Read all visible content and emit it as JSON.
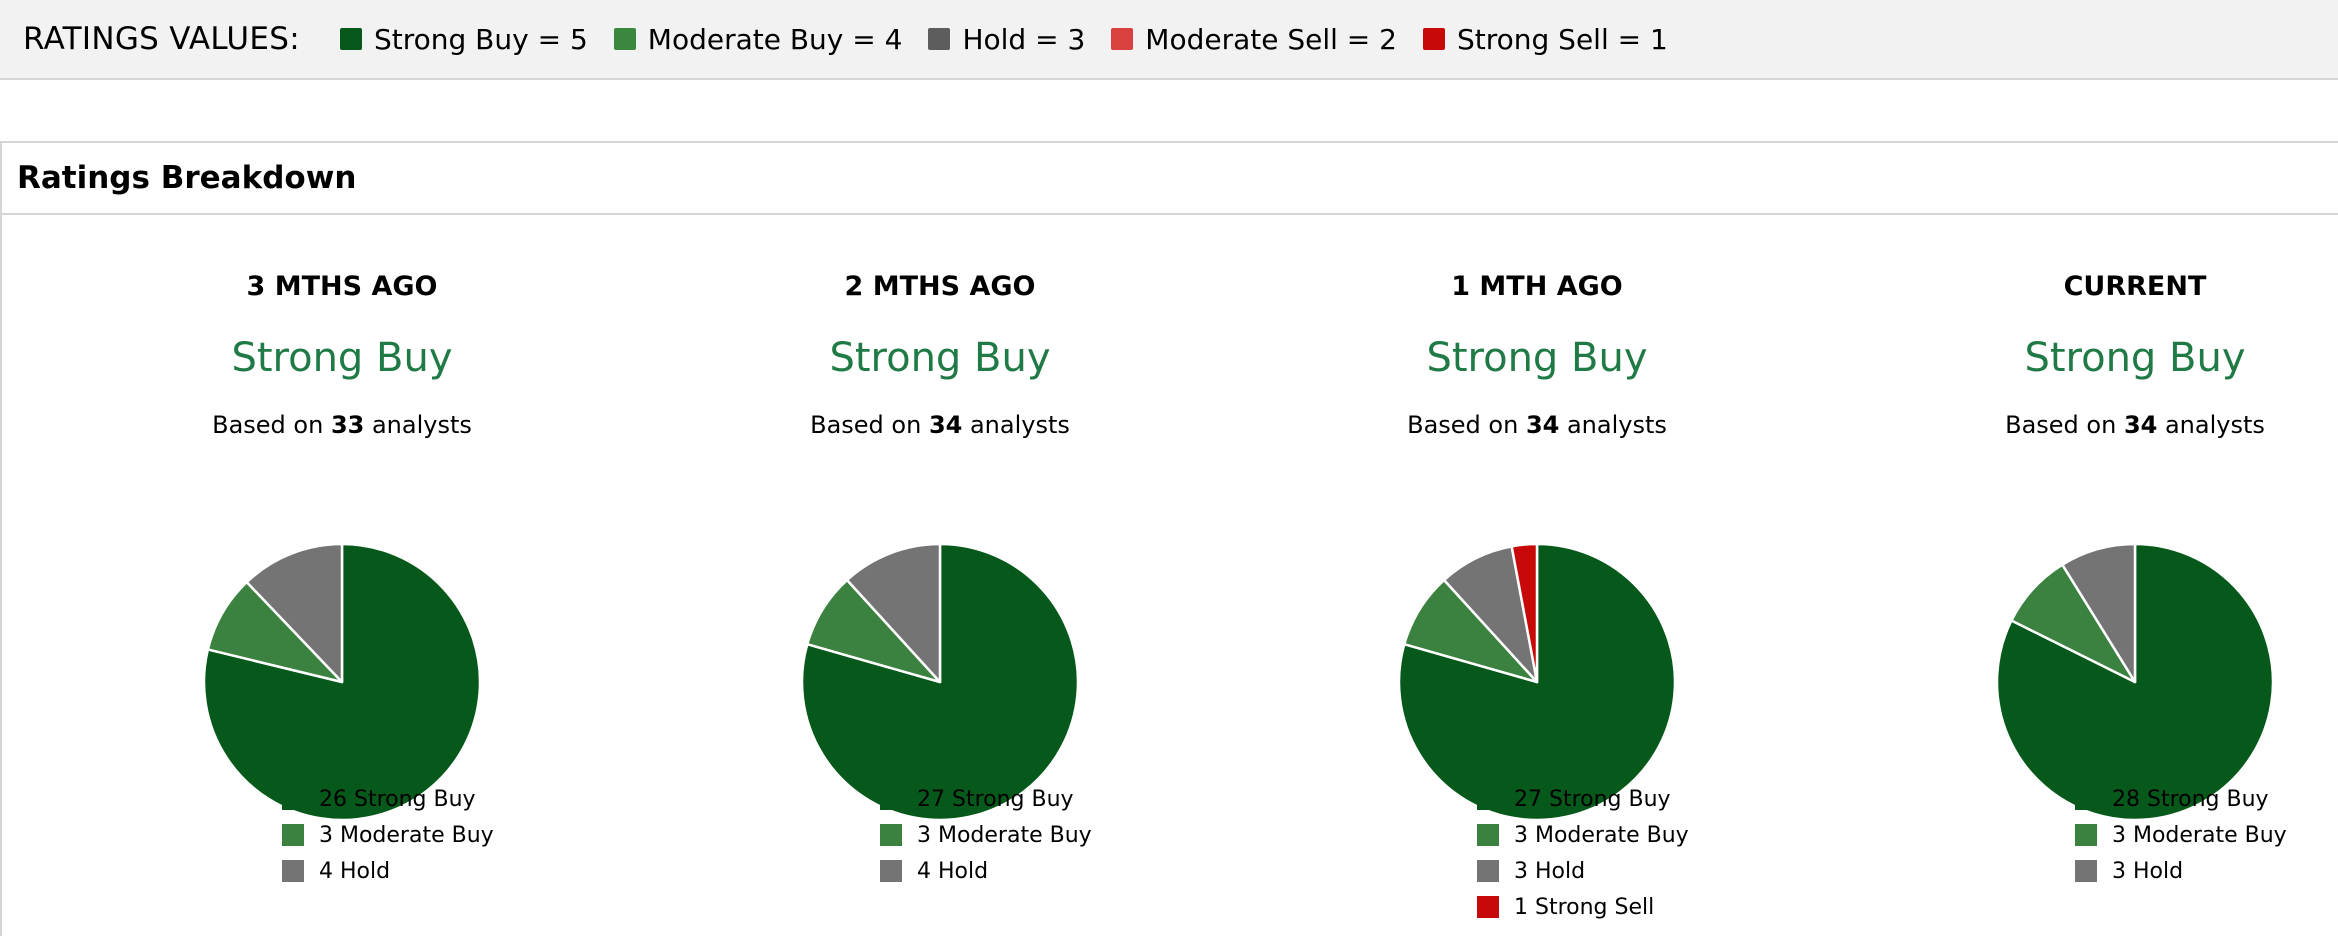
{
  "legend_bar": {
    "title": "RATINGS VALUES:",
    "entries": [
      {
        "label": "Strong Buy = 5",
        "color": "#06591a"
      },
      {
        "label": "Moderate Buy = 4",
        "color": "#3b873e"
      },
      {
        "label": "Hold = 3",
        "color": "#5d5d5d"
      },
      {
        "label": "Moderate Sell = 2",
        "color": "#d9413f"
      },
      {
        "label": "Strong Sell = 1",
        "color": "#c70909"
      }
    ]
  },
  "panel": {
    "title": "Ratings Breakdown"
  },
  "chart_data": [
    {
      "type": "pie",
      "title": "3 MTHS AGO",
      "consensus": "Strong Buy",
      "based_on_prefix": "Based on",
      "analysts": "33",
      "based_on_suffix": "analysts",
      "slices": [
        {
          "label": "26 Strong Buy",
          "value": 26,
          "color": "#06591a"
        },
        {
          "label": "3 Moderate Buy",
          "value": 3,
          "color": "#3b813f"
        },
        {
          "label": "4 Hold",
          "value": 4,
          "color": "#747474"
        }
      ]
    },
    {
      "type": "pie",
      "title": "2 MTHS AGO",
      "consensus": "Strong Buy",
      "based_on_prefix": "Based on",
      "analysts": "34",
      "based_on_suffix": "analysts",
      "slices": [
        {
          "label": "27 Strong Buy",
          "value": 27,
          "color": "#06591a"
        },
        {
          "label": "3 Moderate Buy",
          "value": 3,
          "color": "#3b813f"
        },
        {
          "label": "4 Hold",
          "value": 4,
          "color": "#747474"
        }
      ]
    },
    {
      "type": "pie",
      "title": "1 MTH AGO",
      "consensus": "Strong Buy",
      "based_on_prefix": "Based on",
      "analysts": "34",
      "based_on_suffix": "analysts",
      "slices": [
        {
          "label": "27 Strong Buy",
          "value": 27,
          "color": "#06591a"
        },
        {
          "label": "3 Moderate Buy",
          "value": 3,
          "color": "#3b813f"
        },
        {
          "label": "3 Hold",
          "value": 3,
          "color": "#747474"
        },
        {
          "label": "1 Strong Sell",
          "value": 1,
          "color": "#c70909"
        }
      ]
    },
    {
      "type": "pie",
      "title": "CURRENT",
      "consensus": "Strong Buy",
      "based_on_prefix": "Based on",
      "analysts": "34",
      "based_on_suffix": "analysts",
      "slices": [
        {
          "label": "28 Strong Buy",
          "value": 28,
          "color": "#06591a"
        },
        {
          "label": "3 Moderate Buy",
          "value": 3,
          "color": "#3b813f"
        },
        {
          "label": "3 Hold",
          "value": 3,
          "color": "#747474"
        }
      ]
    }
  ]
}
